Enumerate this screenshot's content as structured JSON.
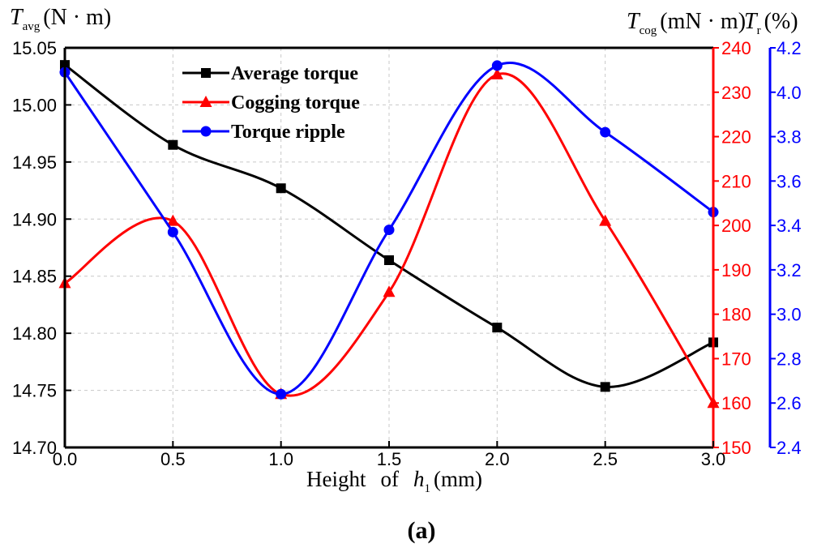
{
  "chart_data": {
    "type": "line",
    "x": [
      0.0,
      0.5,
      1.0,
      1.5,
      2.0,
      2.5,
      3.0
    ],
    "x_tick_labels": [
      "0.0",
      "0.5",
      "1.0",
      "1.5",
      "2.0",
      "2.5",
      "3.0"
    ],
    "xlim": [
      0.0,
      3.0
    ],
    "xlabel_parts": [
      "Height",
      "of",
      "h",
      "1",
      "(",
      "mm",
      ")"
    ],
    "caption": "(a)",
    "grid": true,
    "legend_position": "top-center",
    "axes": {
      "left": {
        "label_symbol": "T",
        "label_sub": "avg",
        "label_unit": "N · m",
        "lim": [
          14.7,
          15.05
        ],
        "tick_values": [
          14.7,
          14.75,
          14.8,
          14.85,
          14.9,
          14.95,
          15.0,
          15.05
        ],
        "tick_labels": [
          "14.70",
          "14.75",
          "14.80",
          "14.85",
          "14.90",
          "14.95",
          "15.00",
          "15.05"
        ],
        "color": "#000000"
      },
      "right1": {
        "label_symbol": "T",
        "label_sub": "cog",
        "label_unit": "mN · m",
        "lim": [
          150,
          240
        ],
        "tick_values": [
          150,
          160,
          170,
          180,
          190,
          200,
          210,
          220,
          230,
          240
        ],
        "tick_labels": [
          "150",
          "160",
          "170",
          "180",
          "190",
          "200",
          "210",
          "220",
          "230",
          "240"
        ],
        "color": "#ff0000"
      },
      "right2": {
        "label_symbol": "T",
        "label_sub": "r",
        "label_unit": "%",
        "lim": [
          2.4,
          4.2
        ],
        "tick_values": [
          2.4,
          2.6,
          2.8,
          3.0,
          3.2,
          3.4,
          3.6,
          3.8,
          4.0,
          4.2
        ],
        "tick_labels": [
          "2.4",
          "2.6",
          "2.8",
          "3.0",
          "3.2",
          "3.4",
          "3.6",
          "3.8",
          "4.0",
          "4.2"
        ],
        "color": "#0000ff"
      }
    },
    "series": [
      {
        "name": "Average torque",
        "axis": "left",
        "marker": "square",
        "color": "#000000",
        "values": [
          15.035,
          14.965,
          14.927,
          14.864,
          14.805,
          14.753,
          14.792
        ]
      },
      {
        "name": "Cogging torque",
        "axis": "right1",
        "marker": "triangle",
        "color": "#ff0000",
        "values": [
          187,
          201,
          162,
          185,
          234,
          201,
          160
        ]
      },
      {
        "name": "Torque ripple",
        "axis": "right2",
        "marker": "circle",
        "color": "#0000ff",
        "values": [
          4.09,
          3.37,
          2.64,
          3.38,
          4.12,
          3.82,
          3.46
        ]
      }
    ]
  }
}
